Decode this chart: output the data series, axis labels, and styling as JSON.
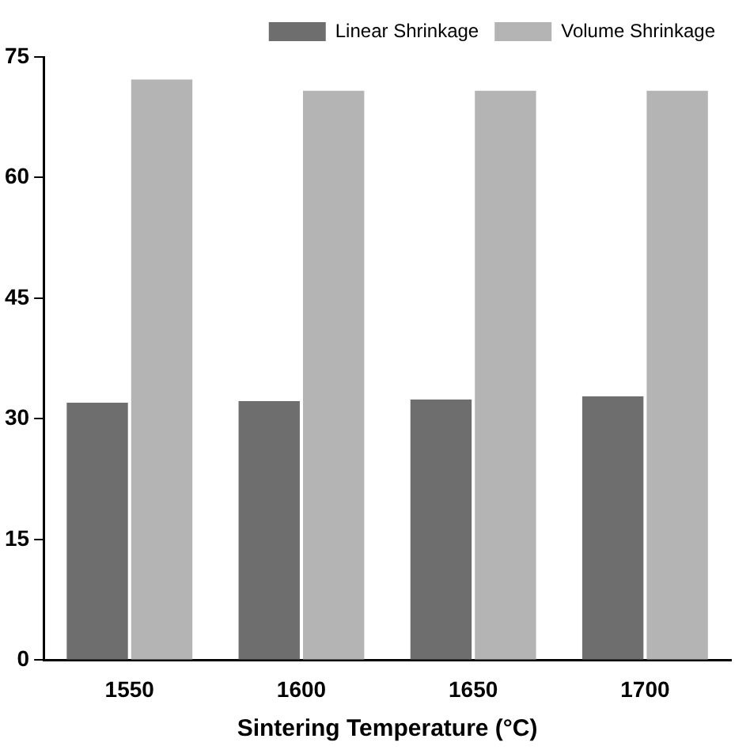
{
  "chart_data": {
    "type": "bar",
    "xlabel": "Sintering Temperature (°C)",
    "categories": [
      "1550",
      "1600",
      "1650",
      "1700"
    ],
    "series": [
      {
        "name": "Linear Shrinkage",
        "color": "#6e6e6e",
        "values": [
          32,
          32.2,
          32.4,
          32.8
        ]
      },
      {
        "name": "Volume Shrinkage",
        "color": "#b4b4b4",
        "values": [
          72.2,
          70.8,
          70.8,
          70.8
        ]
      }
    ],
    "ylim": [
      0,
      75
    ],
    "yticks": [
      0,
      15,
      30,
      45,
      60,
      75
    ],
    "grid": false,
    "legend": "top"
  }
}
